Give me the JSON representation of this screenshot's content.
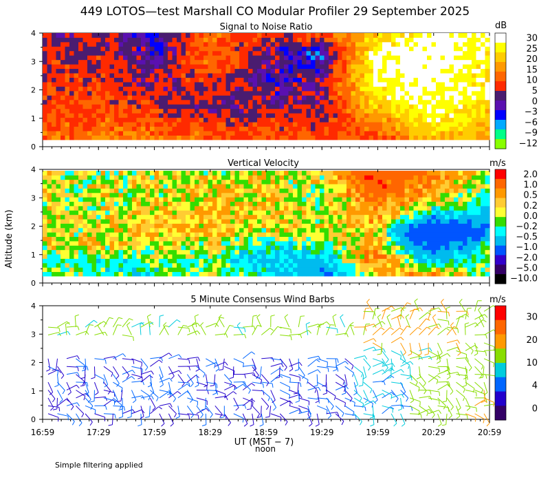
{
  "header": {
    "title": "449 LOTOS—test Marshall CO Modular Profiler 29 September 2025"
  },
  "footer": {
    "note": "Simple filtering applied"
  },
  "axes": {
    "ylabel": "Altitude (km)",
    "xlabel": "UT  (MST − 7)",
    "x_sublabel": "noon",
    "x_ticks": [
      "16:59",
      "17:29",
      "17:59",
      "18:29",
      "18:59",
      "19:29",
      "19:59",
      "20:29",
      "20:59"
    ],
    "y_ticks": [
      "0",
      "1",
      "2",
      "3",
      "4"
    ]
  },
  "chart_data": [
    {
      "type": "heatmap",
      "title": "Signal to Noise Ratio",
      "ylabel": "Altitude (km)",
      "xlabel": "UT  (MST − 7)",
      "xlim": [
        "16:59",
        "20:59"
      ],
      "ylim": [
        0,
        4
      ],
      "colorbar": {
        "unit": "dB",
        "labels": [
          "30",
          "25",
          "20",
          "15",
          "10",
          "5",
          "0",
          "−3",
          "−6",
          "−9",
          "−12"
        ],
        "colors": [
          "#ffffff",
          "#ffff00",
          "#ffcc00",
          "#ff9900",
          "#ff6600",
          "#ff2a00",
          "#4a1c70",
          "#5a10b0",
          "#0000ff",
          "#00aaff",
          "#00ff88",
          "#88ff00"
        ]
      },
      "x": [
        "16:59",
        "17:29",
        "17:59",
        "18:29",
        "18:59",
        "19:29",
        "19:59",
        "20:29",
        "20:59"
      ],
      "y": [
        0.5,
        1.0,
        1.5,
        2.0,
        2.5,
        3.0,
        3.5,
        4.0
      ],
      "z": [
        [
          10,
          8,
          7,
          6,
          5,
          4,
          3,
          2
        ],
        [
          13,
          10,
          8,
          7,
          6,
          5,
          4,
          3
        ],
        [
          12,
          9,
          5,
          3,
          1,
          0,
          -2,
          -4
        ],
        [
          10,
          5,
          0,
          3,
          6,
          10,
          10,
          12
        ],
        [
          8,
          6,
          2,
          0,
          -2,
          2,
          2,
          5
        ],
        [
          8,
          5,
          2,
          2,
          0,
          -3,
          -6,
          10
        ],
        [
          8,
          12,
          20,
          25,
          28,
          30,
          28,
          20
        ],
        [
          20,
          25,
          28,
          30,
          30,
          32,
          32,
          30
        ],
        [
          18,
          20,
          22,
          25,
          25,
          25,
          25,
          28
        ]
      ]
    },
    {
      "type": "heatmap",
      "title": "Vertical Velocity",
      "ylabel": "Altitude (km)",
      "xlabel": "UT  (MST − 7)",
      "xlim": [
        "16:59",
        "20:59"
      ],
      "ylim": [
        0,
        4
      ],
      "colorbar": {
        "unit": "m/s",
        "labels": [
          "2.0",
          "1.0",
          "0.5",
          "0.2",
          "0.0",
          "−0.2",
          "−0.5",
          "−1.0",
          "−2.0",
          "−5.0",
          "−10.0"
        ],
        "colors": [
          "#ff0000",
          "#ff6600",
          "#ff9900",
          "#ffcc33",
          "#ffff33",
          "#33dd00",
          "#00ffff",
          "#00bbee",
          "#0055ff",
          "#3300cc",
          "#330066",
          "#000000"
        ]
      },
      "x": [
        "16:59",
        "17:29",
        "17:59",
        "18:29",
        "18:59",
        "19:29",
        "19:59",
        "20:29",
        "20:59"
      ],
      "y": [
        0.5,
        1.0,
        1.5,
        2.0,
        2.5,
        3.0,
        3.5,
        4.0
      ],
      "z": [
        [
          -0.3,
          -0.2,
          0.0,
          0.0,
          0.1,
          0.0,
          0.0,
          0.0
        ],
        [
          -0.3,
          -0.5,
          0.2,
          0.1,
          0.0,
          0.0,
          0.0,
          0.0
        ],
        [
          -0.5,
          -0.3,
          0.0,
          0.3,
          0.2,
          0.1,
          0.0,
          0.0
        ],
        [
          -0.2,
          -0.3,
          0.0,
          0.3,
          0.4,
          0.3,
          0.2,
          0.0
        ],
        [
          -0.5,
          -1.0,
          -0.5,
          0.0,
          0.2,
          0.2,
          0.1,
          0.1
        ],
        [
          -1.5,
          -1.0,
          -0.3,
          0.0,
          0.0,
          -0.2,
          -0.1,
          0.0
        ],
        [
          0.3,
          0.8,
          0.5,
          0.3,
          0.6,
          0.8,
          1.2,
          1.5
        ],
        [
          0.5,
          -1.0,
          -2.0,
          -3.0,
          -1.0,
          0.2,
          0.5,
          0.8
        ],
        [
          -0.3,
          -0.2,
          -0.5,
          -1.5,
          -1.0,
          -0.5,
          -0.2,
          0.0
        ]
      ]
    },
    {
      "type": "scatter",
      "title": "5 Minute Consensus Wind Barbs",
      "ylabel": "Altitude (km)",
      "xlabel": "UT  (MST − 7)",
      "xlim": [
        "16:59",
        "20:59"
      ],
      "ylim": [
        0,
        4
      ],
      "colorbar": {
        "unit": "m/s",
        "labels": [
          "30",
          "20",
          "10",
          "4",
          "0"
        ],
        "colors": [
          "#ff0000",
          "#ff6600",
          "#ff9900",
          "#88dd00",
          "#00ccdd",
          "#0066ff",
          "#2200cc",
          "#330066"
        ]
      },
      "series": [
        {
          "x": [
            "16:59",
            "17:29",
            "17:59",
            "18:29",
            "18:59",
            "19:29",
            "19:59",
            "20:29",
            "20:59"
          ],
          "speed_ms_at_1km": [
            4,
            4,
            4,
            4,
            4,
            4,
            6,
            12,
            14
          ],
          "speed_ms_at_2km": [
            4,
            4,
            4,
            4,
            4,
            4,
            8,
            10,
            12
          ],
          "speed_ms_at_3km": [
            10,
            10,
            10,
            10,
            10,
            10,
            14,
            14,
            12
          ]
        }
      ]
    }
  ]
}
